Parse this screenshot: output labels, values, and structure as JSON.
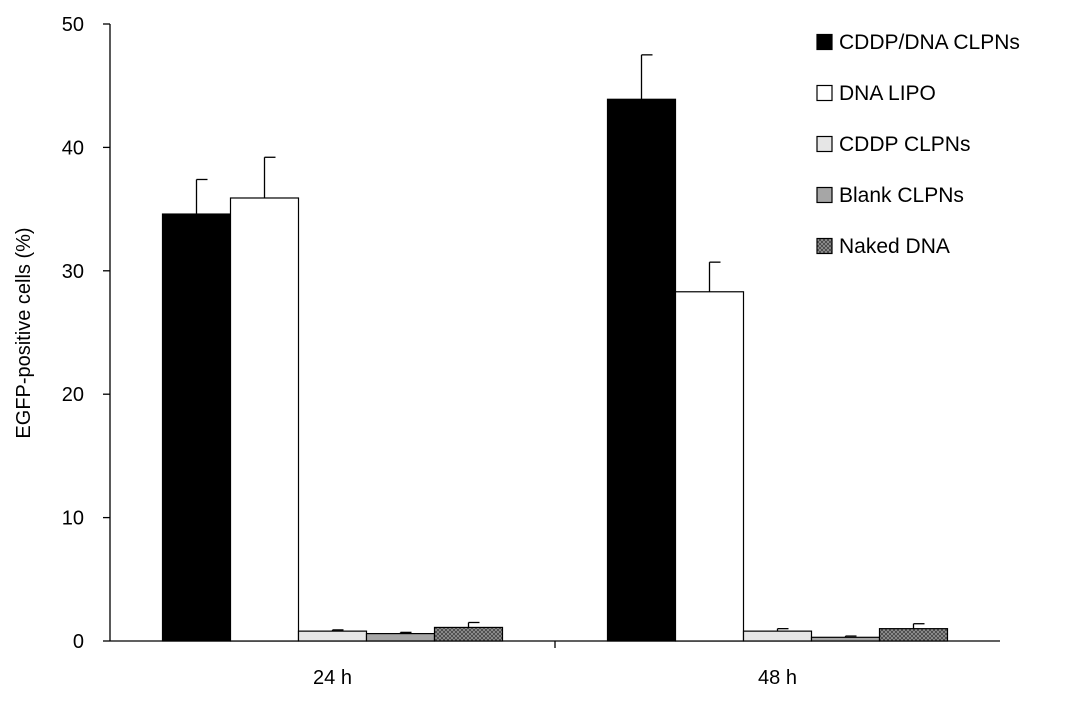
{
  "chart_data": {
    "type": "bar",
    "title": "",
    "xlabel": "",
    "ylabel": "EGFP-positive cells (%)",
    "ylim": [
      0,
      50
    ],
    "yticks": [
      0,
      10,
      20,
      30,
      40,
      50
    ],
    "categories": [
      "24 h",
      "48 h"
    ],
    "legend_position": "top-right",
    "series": [
      {
        "name": "CDDP/DNA CLPNs",
        "values": [
          34.6,
          43.9
        ],
        "errors": [
          2.8,
          3.6
        ],
        "fill": "#000000",
        "pattern": "solid"
      },
      {
        "name": "DNA LIPO",
        "values": [
          35.9,
          28.3
        ],
        "errors": [
          3.3,
          2.4
        ],
        "fill": "#ffffff",
        "pattern": "solid"
      },
      {
        "name": "CDDP CLPNs",
        "values": [
          0.8,
          0.8
        ],
        "errors": [
          0.1,
          0.2
        ],
        "fill": "#e6e6e6",
        "pattern": "solid"
      },
      {
        "name": "Blank CLPNs",
        "values": [
          0.6,
          0.3
        ],
        "errors": [
          0.1,
          0.1
        ],
        "fill": "#a6a6a6",
        "pattern": "solid"
      },
      {
        "name": "Naked DNA",
        "values": [
          1.1,
          1.0
        ],
        "errors": [
          0.4,
          0.4
        ],
        "fill": "#8c8c8c",
        "pattern": "crosshatch"
      }
    ]
  }
}
